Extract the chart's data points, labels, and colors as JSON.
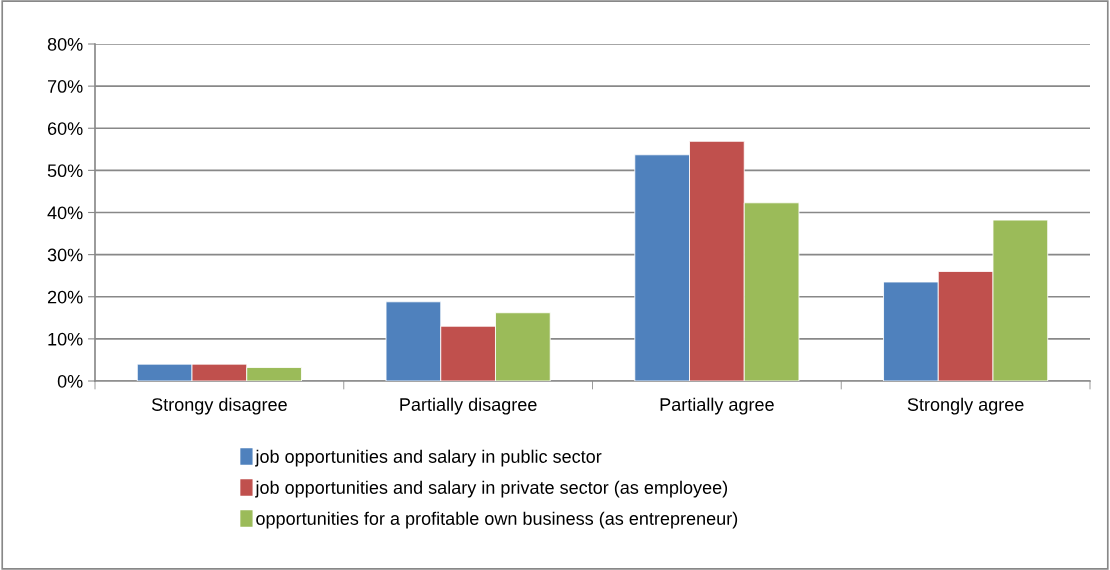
{
  "chart_data": {
    "type": "bar",
    "categories": [
      "Strongy disagree",
      "Partially disagree",
      "Partially agree",
      "Strongly agree"
    ],
    "series": [
      {
        "name": "job opportunities and salary in public sector",
        "color": "#4f81bd",
        "values": [
          4.0,
          18.8,
          53.7,
          23.5
        ]
      },
      {
        "name": "job opportunities and salary in private sector (as employee)",
        "color": "#c0504d",
        "values": [
          4.0,
          13.0,
          56.9,
          26.0
        ]
      },
      {
        "name": "opportunities for a profitable own business (as entrepreneur)",
        "color": "#9bbb59",
        "values": [
          3.2,
          16.2,
          42.3,
          38.2
        ]
      }
    ],
    "ylim": [
      0,
      80
    ],
    "yticks": [
      {
        "value": 0,
        "label": "0%"
      },
      {
        "value": 10,
        "label": "10%"
      },
      {
        "value": 20,
        "label": "20%"
      },
      {
        "value": 30,
        "label": "30%"
      },
      {
        "value": 40,
        "label": "40%"
      },
      {
        "value": 50,
        "label": "50%"
      },
      {
        "value": 60,
        "label": "60%"
      },
      {
        "value": 70,
        "label": "70%"
      },
      {
        "value": 80,
        "label": "80%"
      }
    ],
    "grid": "y",
    "legend": "bottom"
  }
}
